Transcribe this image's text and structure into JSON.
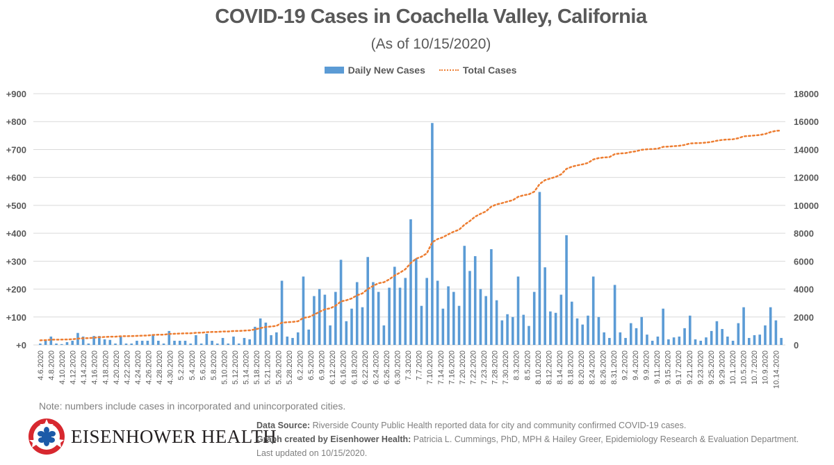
{
  "title": "COVID-19 Cases in Coachella Valley, California",
  "subtitle": "(As of 10/15/2020)",
  "legend": {
    "bar_label": "Daily New Cases",
    "line_label": "Total Cases"
  },
  "colors": {
    "bar": "#5B9BD5",
    "line": "#ED7D31",
    "grid": "#D9D9D9",
    "axis_text": "#595959"
  },
  "note": "Note: numbers include cases in incorporated and unincorporated cities.",
  "logo": {
    "name": "Eisenhower Health",
    "display": "EISENHOWER HEALTH"
  },
  "credits": {
    "source_label": "Data Source:",
    "source_text": " Riverside County Public Health reported data for city and community confirmed COVID-19 cases.",
    "created_label": "Graph created by Eisenhower Health:",
    "created_text": " Patricia L. Cummings, PhD, MPH & Hailey Greer, Epidemiology Research & Evaluation Department. Last updated on 10/15/2020."
  },
  "chart_data": {
    "type": "bar",
    "title": "COVID-19 Cases in Coachella Valley, California",
    "subtitle": "(As of 10/15/2020)",
    "xlabel": "",
    "ylabel_left": "Daily New Cases",
    "ylabel_right": "Total Cases",
    "ylim_left": [
      0,
      900
    ],
    "ylim_right": [
      0,
      18000
    ],
    "yticks_left": [
      "+0",
      "+100",
      "+200",
      "+300",
      "+400",
      "+500",
      "+600",
      "+700",
      "+800",
      "+900"
    ],
    "yticks_right": [
      "0",
      "2000",
      "4000",
      "6000",
      "8000",
      "10000",
      "12000",
      "14000",
      "16000",
      "18000"
    ],
    "grid": true,
    "legend_position": "top",
    "x_tick_labels": [
      "4.6.2020",
      "4.8.2020",
      "4.10.2020",
      "4.12.2020",
      "4.14.2020",
      "4.16.2020",
      "4.18.2020",
      "4.20.2020",
      "4.22.2020",
      "4.24.2020",
      "4.26.2020",
      "4.28.2020",
      "4.30.2020",
      "5.2.2020",
      "5.4.2020",
      "5.6.2020",
      "5.8.2020",
      "5.10.2020",
      "5.12.2020",
      "5.14.2020",
      "5.18.2020",
      "5.21.2020",
      "5.26.2020",
      "5.28.2020",
      "6.2.2020",
      "6.5.2020",
      "6.9.2020",
      "6.12.2020",
      "6.16.2020",
      "6.18.2020",
      "6.22.2020",
      "6.24.2020",
      "6.26.2020",
      "6.30.2020",
      "7.3.2020",
      "7.7.2020",
      "7.10.2020",
      "7.14.2020",
      "7.16.2020",
      "7.20.2020",
      "7.22.2020",
      "7.23.2020",
      "7.28.2020",
      "7.30.2020",
      "8.3.2020",
      "8.5.2020",
      "8.10.2020",
      "8.12.2020",
      "8.14.2020",
      "8.18.2020",
      "8.20.2020",
      "8.24.2020",
      "8.26.2020",
      "8.31.2020",
      "9.2.2020",
      "9.4.2020",
      "9.9.2020",
      "9.11.2020",
      "9.15.2020",
      "9.17.2020",
      "9.21.2020",
      "9.23.2020",
      "9.25.2020",
      "9.29.2020",
      "10.1.2020",
      "10.5.2020",
      "10.7.2020",
      "10.9.2020",
      "10.14.2020"
    ],
    "series": [
      {
        "name": "Daily New Cases",
        "type": "bar",
        "values": [
          5,
          15,
          30,
          5,
          3,
          10,
          15,
          43,
          30,
          5,
          32,
          32,
          20,
          18,
          5,
          30,
          5,
          5,
          15,
          15,
          15,
          38,
          15,
          5,
          50,
          15,
          15,
          15,
          5,
          35,
          5,
          40,
          15,
          5,
          25,
          5,
          30,
          5,
          25,
          20,
          65,
          95,
          80,
          35,
          45,
          230,
          30,
          25,
          45,
          245,
          55,
          175,
          200,
          180,
          70,
          190,
          305,
          85,
          130,
          225,
          135,
          315,
          225,
          190,
          70,
          205,
          280,
          205,
          240,
          450,
          310,
          140,
          240,
          795,
          230,
          130,
          210,
          190,
          140,
          355,
          265,
          318,
          200,
          175,
          343,
          160,
          88,
          110,
          100,
          245,
          108,
          68,
          190,
          548,
          278,
          120,
          115,
          180,
          393,
          155,
          95,
          73,
          105,
          245,
          100,
          45,
          25,
          215,
          45,
          25,
          78,
          60,
          100,
          37,
          15,
          30,
          130,
          20,
          27,
          30,
          60,
          105,
          20,
          15,
          27,
          50,
          85,
          57,
          30,
          15,
          78,
          135,
          25,
          35,
          37,
          70,
          135,
          88,
          25
        ],
        "color": "#5B9BD5"
      },
      {
        "name": "Total Cases",
        "type": "line",
        "style": "dotted",
        "values": [
          330,
          345,
          375,
          380,
          383,
          393,
          408,
          451,
          481,
          486,
          518,
          550,
          570,
          588,
          593,
          623,
          628,
          633,
          648,
          663,
          678,
          716,
          731,
          736,
          786,
          801,
          816,
          831,
          836,
          871,
          876,
          916,
          931,
          936,
          961,
          966,
          996,
          1001,
          1026,
          1046,
          1111,
          1206,
          1286,
          1321,
          1366,
          1596,
          1626,
          1651,
          1696,
          1941,
          1996,
          2171,
          2371,
          2551,
          2621,
          2811,
          3116,
          3201,
          3331,
          3556,
          3691,
          4006,
          4231,
          4421,
          4491,
          4696,
          4976,
          5181,
          5421,
          5871,
          6181,
          6321,
          6561,
          7356,
          7586,
          7716,
          7926,
          8116,
          8256,
          8611,
          8876,
          9194,
          9394,
          9569,
          9912,
          10072,
          10160,
          10270,
          10370,
          10615,
          10723,
          10791,
          10981,
          11529,
          11807,
          11927,
          12042,
          12222,
          12615,
          12770,
          12865,
          12938,
          13043,
          13288,
          13388,
          13433,
          13458,
          13673,
          13718,
          13743,
          13821,
          13881,
          13981,
          14018,
          14033,
          14063,
          14193,
          14213,
          14240,
          14270,
          14330,
          14435,
          14455,
          14470,
          14497,
          14547,
          14632,
          14689,
          14719,
          14734,
          14812,
          14947,
          14972,
          15007,
          15044,
          15114,
          15249,
          15337,
          15362
        ]
      }
    ]
  }
}
